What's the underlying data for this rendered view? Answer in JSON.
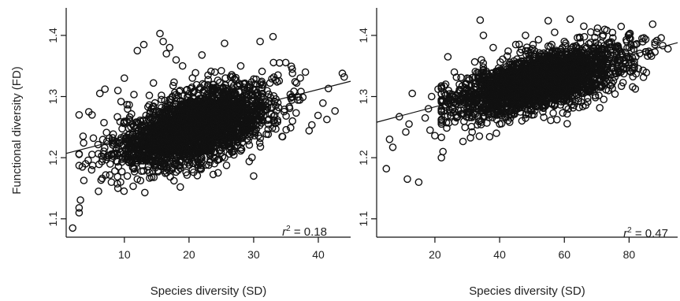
{
  "chart_data": [
    {
      "type": "scatter",
      "xlabel": "Species diversity (SD)",
      "ylabel": "Functional diversity (FD)",
      "xlim": [
        1,
        45
      ],
      "ylim": [
        1.07,
        1.445
      ],
      "xticks": [
        "10",
        "20",
        "30",
        "40"
      ],
      "yticks": [
        "1.1",
        "1.2",
        "1.3",
        "1.4"
      ],
      "grid": false,
      "r2": {
        "symbol": "r",
        "superscript": "2",
        "text": " = 0.18"
      },
      "regression_line": {
        "x": [
          1,
          45
        ],
        "y": [
          1.207,
          1.325
        ]
      },
      "cloud": {
        "n": 2600,
        "x_mean": 21,
        "x_sd": 6,
        "x_range": [
          3,
          44
        ],
        "y_intercept": 1.187,
        "y_slope": 0.003,
        "y_sd": 0.028
      },
      "highlight_points": [
        {
          "x": 2,
          "y": 1.085
        },
        {
          "x": 3,
          "y": 1.118
        },
        {
          "x": 3.5,
          "y": 1.185
        },
        {
          "x": 4,
          "y": 1.19
        },
        {
          "x": 4.5,
          "y": 1.275
        },
        {
          "x": 5,
          "y": 1.27
        },
        {
          "x": 5.2,
          "y": 1.232
        },
        {
          "x": 6,
          "y": 1.145
        },
        {
          "x": 6.2,
          "y": 1.305
        },
        {
          "x": 7,
          "y": 1.312
        },
        {
          "x": 8,
          "y": 1.16
        },
        {
          "x": 9,
          "y": 1.31
        },
        {
          "x": 10,
          "y": 1.33
        },
        {
          "x": 12,
          "y": 1.375
        },
        {
          "x": 13,
          "y": 1.385
        },
        {
          "x": 15.5,
          "y": 1.403
        },
        {
          "x": 16,
          "y": 1.39
        },
        {
          "x": 16.5,
          "y": 1.37
        },
        {
          "x": 17,
          "y": 1.38
        },
        {
          "x": 18,
          "y": 1.36
        },
        {
          "x": 19,
          "y": 1.35
        },
        {
          "x": 22,
          "y": 1.368
        },
        {
          "x": 24,
          "y": 1.34
        },
        {
          "x": 25.5,
          "y": 1.387
        },
        {
          "x": 28,
          "y": 1.35
        },
        {
          "x": 31,
          "y": 1.39
        },
        {
          "x": 33,
          "y": 1.398
        },
        {
          "x": 34,
          "y": 1.355
        },
        {
          "x": 36,
          "y": 1.338
        },
        {
          "x": 38,
          "y": 1.34
        },
        {
          "x": 44,
          "y": 1.332
        },
        {
          "x": 36,
          "y": 1.26
        },
        {
          "x": 30,
          "y": 1.17
        },
        {
          "x": 24,
          "y": 1.2
        },
        {
          "x": 12,
          "y": 1.165
        },
        {
          "x": 9,
          "y": 1.15
        }
      ]
    },
    {
      "type": "scatter",
      "xlabel": "Species diversity (SD)",
      "ylabel": "",
      "xlim": [
        2,
        95
      ],
      "ylim": [
        1.07,
        1.445
      ],
      "xticks": [
        "20",
        "40",
        "60",
        "80"
      ],
      "yticks": [
        "1.1",
        "1.2",
        "1.3",
        "1.4"
      ],
      "grid": false,
      "r2": {
        "symbol": "r",
        "superscript": "2",
        "text": " = 0.47"
      },
      "regression_line": {
        "x": [
          2,
          95
        ],
        "y": [
          1.258,
          1.388
        ]
      },
      "cloud": {
        "n": 2600,
        "x_mean": 52,
        "x_sd": 13,
        "x_range": [
          22,
          92
        ],
        "y_intercept": 1.254,
        "y_slope": 0.00135,
        "y_sd": 0.022
      },
      "highlight_points": [
        {
          "x": 5,
          "y": 1.182
        },
        {
          "x": 6,
          "y": 1.23
        },
        {
          "x": 7,
          "y": 1.217
        },
        {
          "x": 9,
          "y": 1.267
        },
        {
          "x": 11,
          "y": 1.242
        },
        {
          "x": 11.5,
          "y": 1.165
        },
        {
          "x": 12,
          "y": 1.255
        },
        {
          "x": 13,
          "y": 1.305
        },
        {
          "x": 15,
          "y": 1.16
        },
        {
          "x": 17,
          "y": 1.265
        },
        {
          "x": 18,
          "y": 1.28
        },
        {
          "x": 18.5,
          "y": 1.245
        },
        {
          "x": 19,
          "y": 1.3
        },
        {
          "x": 20,
          "y": 1.236
        },
        {
          "x": 21,
          "y": 1.312
        },
        {
          "x": 22,
          "y": 1.2
        },
        {
          "x": 22.5,
          "y": 1.21
        },
        {
          "x": 24,
          "y": 1.365
        },
        {
          "x": 26,
          "y": 1.34
        },
        {
          "x": 30,
          "y": 1.33
        },
        {
          "x": 34,
          "y": 1.425
        },
        {
          "x": 35,
          "y": 1.4
        },
        {
          "x": 38,
          "y": 1.38
        },
        {
          "x": 39,
          "y": 1.24
        },
        {
          "x": 45,
          "y": 1.385
        },
        {
          "x": 48,
          "y": 1.4
        },
        {
          "x": 52,
          "y": 1.393
        },
        {
          "x": 55,
          "y": 1.424
        },
        {
          "x": 57,
          "y": 1.405
        },
        {
          "x": 60,
          "y": 1.39
        },
        {
          "x": 66,
          "y": 1.415
        },
        {
          "x": 70,
          "y": 1.405
        },
        {
          "x": 75,
          "y": 1.396
        },
        {
          "x": 80,
          "y": 1.402
        },
        {
          "x": 84,
          "y": 1.395
        },
        {
          "x": 88,
          "y": 1.385
        },
        {
          "x": 92,
          "y": 1.378
        },
        {
          "x": 62,
          "y": 1.3
        },
        {
          "x": 50,
          "y": 1.27
        },
        {
          "x": 40,
          "y": 1.255
        }
      ]
    }
  ]
}
